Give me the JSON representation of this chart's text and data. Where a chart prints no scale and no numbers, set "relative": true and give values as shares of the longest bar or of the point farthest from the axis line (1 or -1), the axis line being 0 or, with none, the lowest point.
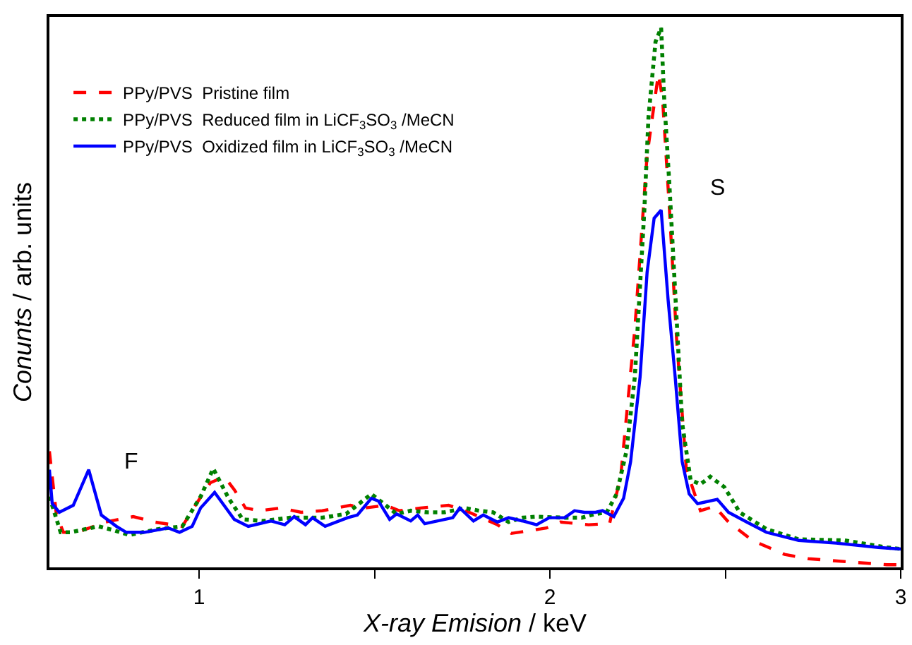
{
  "chart_data": {
    "type": "line",
    "relative": true,
    "xlabel": "X-ray Emision / keV",
    "ylabel": "Conunts / arb. units",
    "xlim": [
      0.573,
      3.0
    ],
    "xticks": [
      1,
      {
        "value": 1.5,
        "label": null
      },
      2,
      {
        "value": 2.5,
        "label": null
      },
      3
    ],
    "legend": "top left",
    "marker": "none",
    "annotations": [
      "F",
      "S"
    ],
    "series": [
      {
        "name": "PPy/PVS  Pristine film",
        "color": "#ff0000",
        "line_style": "dashed",
        "x": [
          0.573,
          0.593,
          0.613,
          0.653,
          0.733,
          0.812,
          0.872,
          0.952,
          0.992,
          1.032,
          1.072,
          1.1,
          1.132,
          1.172,
          1.232,
          1.291,
          1.351,
          1.431,
          1.471,
          1.531,
          1.571,
          1.631,
          1.711,
          1.77,
          1.85,
          1.89,
          1.942,
          1.99,
          2.03,
          2.11,
          2.17,
          2.202,
          2.242,
          2.277,
          2.309,
          2.321,
          2.341,
          2.361,
          2.389,
          2.429,
          2.469,
          2.509,
          2.577,
          2.669,
          2.737,
          2.856,
          2.96,
          3.0
        ],
        "values": [
          0.215,
          0.097,
          0.065,
          0.065,
          0.084,
          0.094,
          0.084,
          0.076,
          0.118,
          0.157,
          0.168,
          0.144,
          0.11,
          0.105,
          0.11,
          0.102,
          0.105,
          0.115,
          0.11,
          0.115,
          0.105,
          0.11,
          0.115,
          0.102,
          0.079,
          0.063,
          0.068,
          0.073,
          0.084,
          0.079,
          0.081,
          0.17,
          0.442,
          0.764,
          0.914,
          0.869,
          0.66,
          0.424,
          0.181,
          0.105,
          0.113,
          0.084,
          0.05,
          0.024,
          0.016,
          0.01,
          0.005,
          0.005
        ]
      },
      {
        "name": "PPy/PVS  Reduced film in LiCF$_{3}$SO$_{3}$ /MeCN",
        "color": "#008000",
        "line_style": "dotted",
        "x": [
          0.573,
          0.605,
          0.633,
          0.713,
          0.76,
          0.8,
          0.884,
          0.952,
          1.004,
          1.04,
          1.084,
          1.124,
          1.18,
          1.259,
          1.351,
          1.419,
          1.491,
          1.563,
          1.603,
          1.651,
          1.699,
          1.758,
          1.798,
          1.838,
          1.882,
          1.922,
          1.962,
          2.042,
          2.09,
          2.13,
          2.162,
          2.19,
          2.218,
          2.242,
          2.269,
          2.281,
          2.301,
          2.317,
          2.325,
          2.341,
          2.357,
          2.377,
          2.401,
          2.429,
          2.457,
          2.497,
          2.541,
          2.617,
          2.709,
          2.84,
          2.96,
          3.0
        ],
        "values": [
          0.131,
          0.065,
          0.065,
          0.076,
          0.068,
          0.06,
          0.071,
          0.076,
          0.131,
          0.183,
          0.128,
          0.089,
          0.086,
          0.092,
          0.092,
          0.099,
          0.136,
          0.099,
          0.105,
          0.102,
          0.102,
          0.11,
          0.105,
          0.102,
          0.084,
          0.092,
          0.094,
          0.092,
          0.092,
          0.099,
          0.102,
          0.136,
          0.215,
          0.353,
          0.66,
          0.835,
          0.974,
          1.0,
          0.877,
          0.704,
          0.511,
          0.267,
          0.162,
          0.154,
          0.168,
          0.149,
          0.102,
          0.071,
          0.052,
          0.05,
          0.037,
          0.034
        ]
      },
      {
        "name": "PPy/PVS  Oxidized film in LiCF$_{3}$SO$_{3}$ /MeCN",
        "color": "#0000ff",
        "line_style": "solid",
        "x": [
          0.573,
          0.581,
          0.601,
          0.641,
          0.685,
          0.721,
          0.764,
          0.792,
          0.844,
          0.912,
          0.944,
          0.98,
          1.004,
          1.044,
          1.1,
          1.14,
          1.204,
          1.244,
          1.271,
          1.303,
          1.323,
          1.359,
          1.423,
          1.451,
          1.491,
          1.511,
          1.543,
          1.563,
          1.603,
          1.623,
          1.643,
          1.723,
          1.743,
          1.782,
          1.81,
          1.85,
          1.882,
          1.922,
          1.962,
          1.998,
          2.042,
          2.07,
          2.098,
          2.13,
          2.15,
          2.182,
          2.21,
          2.23,
          2.257,
          2.277,
          2.297,
          2.317,
          2.337,
          2.357,
          2.377,
          2.397,
          2.421,
          2.477,
          2.509,
          2.561,
          2.617,
          2.709,
          2.816,
          2.936,
          3.0
        ],
        "values": [
          0.181,
          0.118,
          0.102,
          0.115,
          0.181,
          0.097,
          0.076,
          0.065,
          0.065,
          0.073,
          0.065,
          0.076,
          0.11,
          0.139,
          0.089,
          0.076,
          0.086,
          0.079,
          0.094,
          0.079,
          0.092,
          0.076,
          0.092,
          0.097,
          0.128,
          0.123,
          0.089,
          0.099,
          0.086,
          0.097,
          0.081,
          0.092,
          0.11,
          0.086,
          0.097,
          0.084,
          0.092,
          0.086,
          0.079,
          0.092,
          0.092,
          0.105,
          0.102,
          0.102,
          0.105,
          0.094,
          0.128,
          0.196,
          0.353,
          0.547,
          0.647,
          0.662,
          0.495,
          0.353,
          0.196,
          0.136,
          0.118,
          0.126,
          0.102,
          0.084,
          0.065,
          0.05,
          0.045,
          0.037,
          0.034
        ]
      }
    ]
  }
}
